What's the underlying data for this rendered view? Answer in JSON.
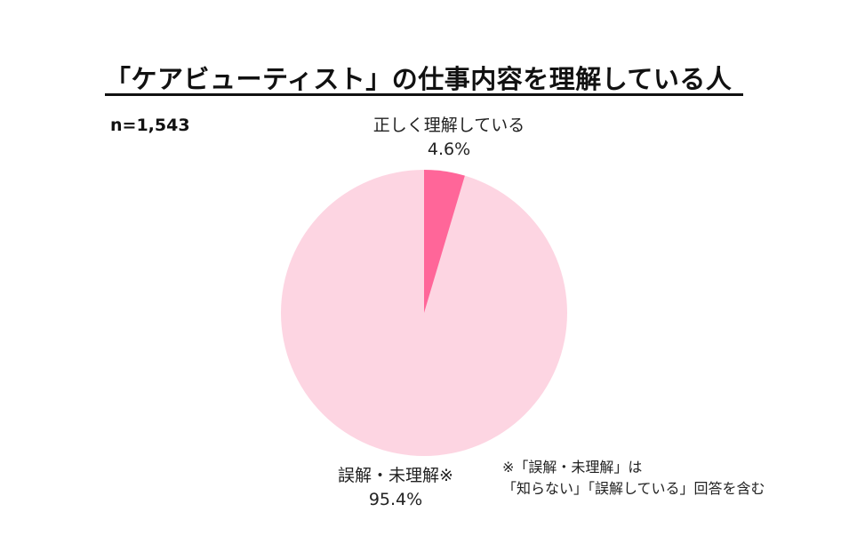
{
  "title": "「ケアビューティスト」の仕事内容を理解している人",
  "sample_size": "n=1,543",
  "slices": [
    {
      "label": "正しく理解している",
      "value_label": "4.6%",
      "color": "#FF6699"
    },
    {
      "label": "誤解・未理解※",
      "value_label": "95.4%",
      "color": "#FDD5E2"
    }
  ],
  "footnote": {
    "line1": "※「誤解・未理解」は",
    "line2": "「知らない」「誤解している」回答を含む"
  },
  "chart_data": {
    "type": "pie",
    "title": "「ケアビューティスト」の仕事内容を理解している人",
    "subtitle": "n=1,543",
    "categories": [
      "正しく理解している",
      "誤解・未理解※"
    ],
    "values": [
      4.6,
      95.4
    ],
    "unit": "%",
    "colors": [
      "#FF6699",
      "#FDD5E2"
    ],
    "start_angle": "12 o'clock, clockwise",
    "annotations": [
      "※「誤解・未理解」は「知らない」「誤解している」回答を含む"
    ],
    "legend": "none (direct labels)"
  }
}
